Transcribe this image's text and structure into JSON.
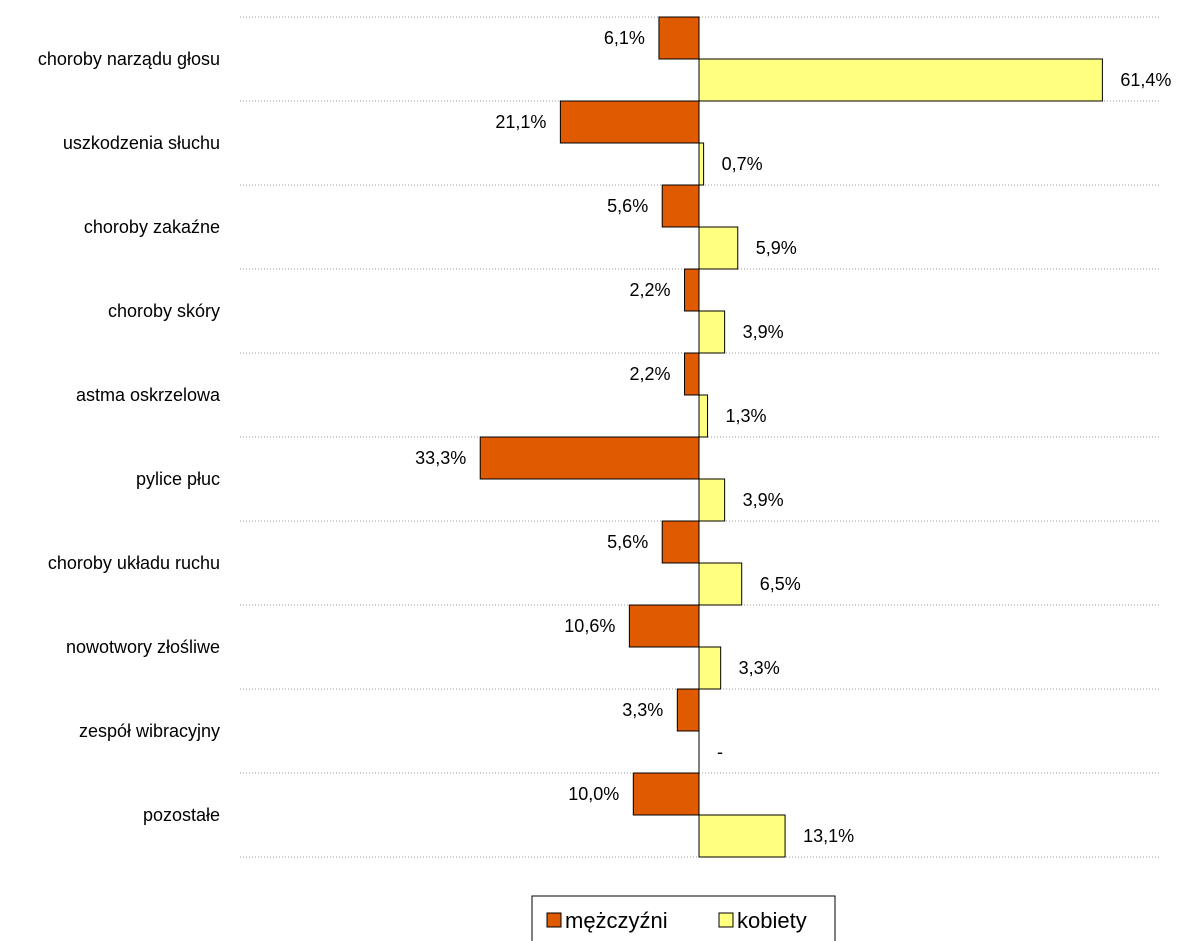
{
  "chart_data": {
    "type": "bar",
    "orientation": "horizontal",
    "categories": [
      "choroby narządu głosu",
      "uszkodzenia słuchu",
      "choroby zakaźne",
      "choroby skóry",
      "astma oskrzelowa",
      "pylice płuc",
      "choroby układu ruchu",
      "nowotwory złośliwe",
      "zespół wibracyjny",
      "pozostałe"
    ],
    "series": [
      {
        "name": "mężczyźni",
        "color": "#E05A00",
        "values": [
          6.1,
          21.1,
          5.6,
          2.2,
          2.2,
          33.3,
          5.6,
          10.6,
          3.3,
          10.0
        ],
        "labels": [
          "6,1%",
          "21,1%",
          "5,6%",
          "2,2%",
          "2,2%",
          "33,3%",
          "5,6%",
          "10,6%",
          "3,3%",
          "10,0%"
        ]
      },
      {
        "name": "kobiety",
        "color": "#FFFF80",
        "values": [
          61.4,
          0.7,
          5.9,
          3.9,
          1.3,
          3.9,
          6.5,
          3.3,
          0,
          13.1
        ],
        "labels": [
          "61,4%",
          "0,7%",
          "5,9%",
          "3,9%",
          "1,3%",
          "3,9%",
          "6,5%",
          "3,3%",
          "-",
          "13,1%"
        ]
      }
    ],
    "direction": "mężczyźni to the left of the center axis, kobiety to the right",
    "grid": true,
    "grid_style": "dotted horizontal separators between categories",
    "legend_position": "bottom-center"
  }
}
